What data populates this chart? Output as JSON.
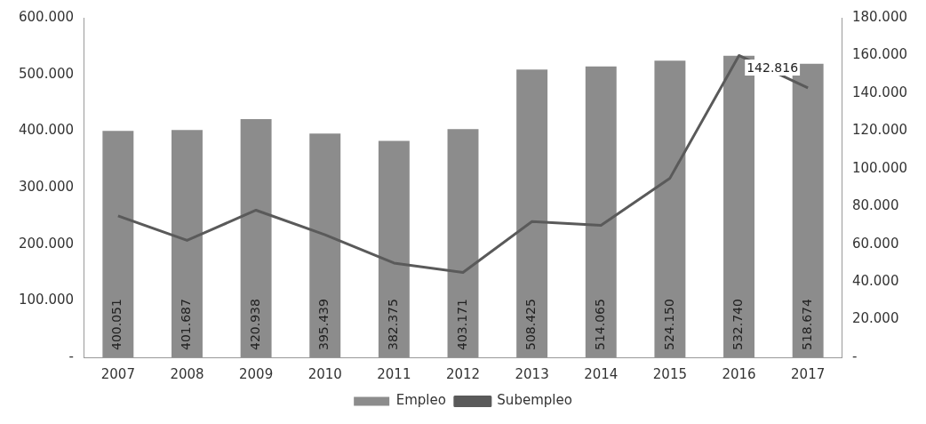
{
  "chart_data": {
    "type": "bar",
    "categories": [
      "2007",
      "2008",
      "2009",
      "2010",
      "2011",
      "2012",
      "2013",
      "2014",
      "2015",
      "2016",
      "2017"
    ],
    "series": [
      {
        "name": "Empleo",
        "color": "#8c8c8c",
        "values": [
          400051,
          401687,
          420938,
          395439,
          382375,
          403171,
          508425,
          514065,
          524150,
          532740,
          518674
        ],
        "value_labels": [
          "400.051",
          "401.687",
          "420.938",
          "395.439",
          "382.375",
          "403.171",
          "508.425",
          "514.065",
          "524.150",
          "532.740",
          "518.674"
        ]
      },
      {
        "name": "Subempleo",
        "type": "line",
        "axis": "y2",
        "color": "#5a5a5a",
        "values": [
          75000,
          62000,
          78000,
          65000,
          50000,
          45000,
          72000,
          70000,
          95000,
          160000,
          142816
        ],
        "value_labels": [
          null,
          null,
          null,
          null,
          null,
          null,
          null,
          null,
          null,
          null,
          "142.816"
        ]
      }
    ],
    "ylim": [
      0,
      600000
    ],
    "yticks": [
      {
        "value": 0,
        "label": "-"
      },
      {
        "value": 100000,
        "label": "100.000"
      },
      {
        "value": 200000,
        "label": "200.000"
      },
      {
        "value": 300000,
        "label": "300.000"
      },
      {
        "value": 400000,
        "label": "400.000"
      },
      {
        "value": 500000,
        "label": "500.000"
      },
      {
        "value": 600000,
        "label": "600.000"
      }
    ],
    "y2lim": [
      0,
      180000
    ],
    "y2ticks": [
      {
        "value": 0,
        "label": "-"
      },
      {
        "value": 20000,
        "label": "20.000"
      },
      {
        "value": 40000,
        "label": "40.000"
      },
      {
        "value": 60000,
        "label": "60.000"
      },
      {
        "value": 80000,
        "label": "80.000"
      },
      {
        "value": 100000,
        "label": "100.000"
      },
      {
        "value": 120000,
        "label": "120.000"
      },
      {
        "value": 140000,
        "label": "140.000"
      },
      {
        "value": 160000,
        "label": "160.000"
      },
      {
        "value": 180000,
        "label": "180.000"
      }
    ],
    "grid": false,
    "legend": "bottom",
    "marker": "none",
    "line_style": "solid"
  }
}
